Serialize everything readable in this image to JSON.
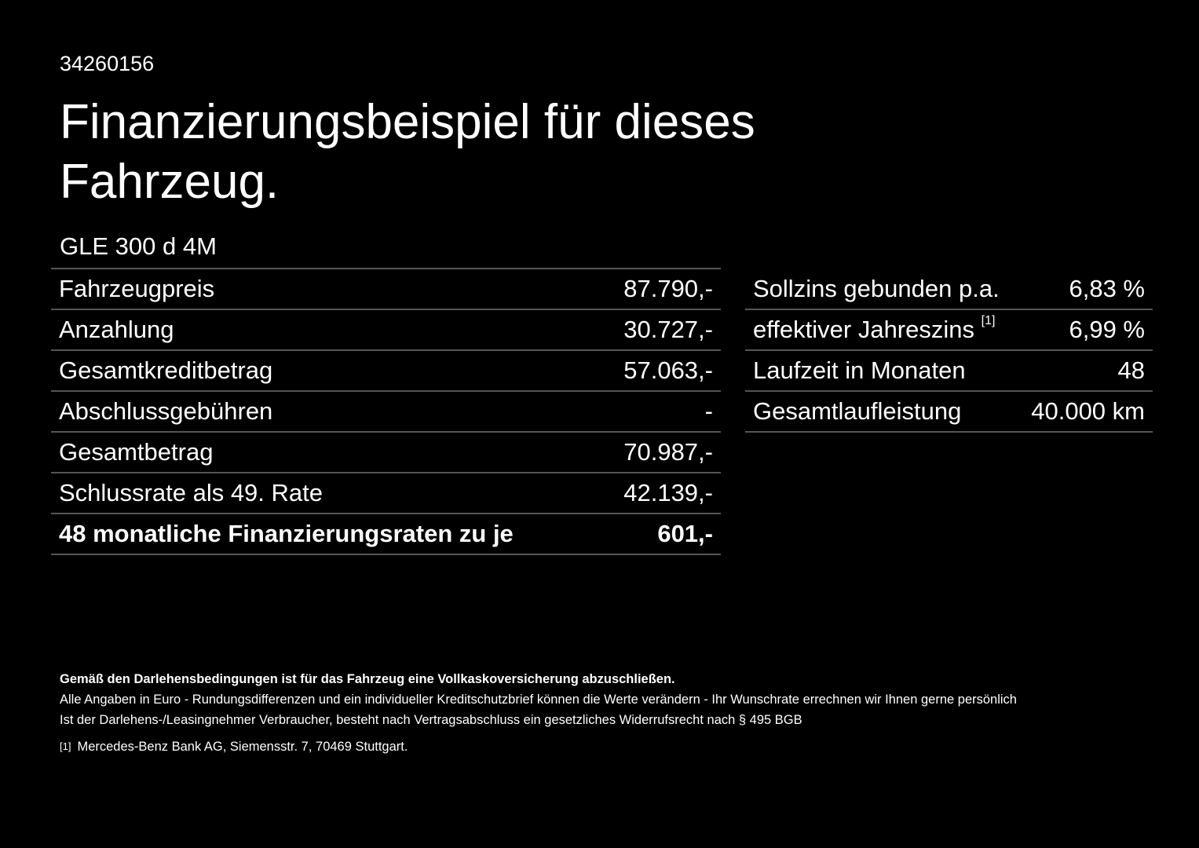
{
  "offer_id": "34260156",
  "title": "Finanzierungsbeispiel für dieses Fahrzeug.",
  "model": "GLE 300 d 4M",
  "left_table": [
    {
      "label": "Fahrzeugpreis",
      "value": "87.790,-"
    },
    {
      "label": "Anzahlung",
      "value": "30.727,-"
    },
    {
      "label": "Gesamtkreditbetrag",
      "value": "57.063,-"
    },
    {
      "label": "Abschlussgebühren",
      "value": "-"
    },
    {
      "label": "Gesamtbetrag",
      "value": "70.987,-"
    },
    {
      "label": "Schlussrate als 49. Rate",
      "value": "42.139,-"
    },
    {
      "label": "48 monatliche Finanzierungsraten zu je",
      "value": "601,-"
    }
  ],
  "right_table": [
    {
      "label": "Sollzins gebunden p.a.",
      "value": "6,83 %"
    },
    {
      "label": "effektiver Jahreszins",
      "sup": "[1]",
      "value": "6,99 %"
    },
    {
      "label": "Laufzeit in Monaten",
      "value": "48"
    },
    {
      "label": "Gesamtlaufleistung",
      "value": "40.000 km"
    }
  ],
  "notes": {
    "bold": "Gemäß den Darlehensbedingungen ist für das Fahrzeug eine Vollkaskoversicherung abzuschließen.",
    "line1": "Alle Angaben in Euro - Rundungsdifferenzen und ein individueller Kreditschutzbrief können die Werte verändern - Ihr Wunschrate errechnen wir Ihnen gerne persönlich",
    "line2": "Ist der Darlehens-/Leasingnehmer Verbraucher, besteht nach Vertragsabschluss ein gesetzliches Widerrufsrecht nach § 495 BGB",
    "footnote_marker": "[1]",
    "footnote": "Mercedes-Benz Bank AG, Siemensstr. 7, 70469 Stuttgart."
  }
}
